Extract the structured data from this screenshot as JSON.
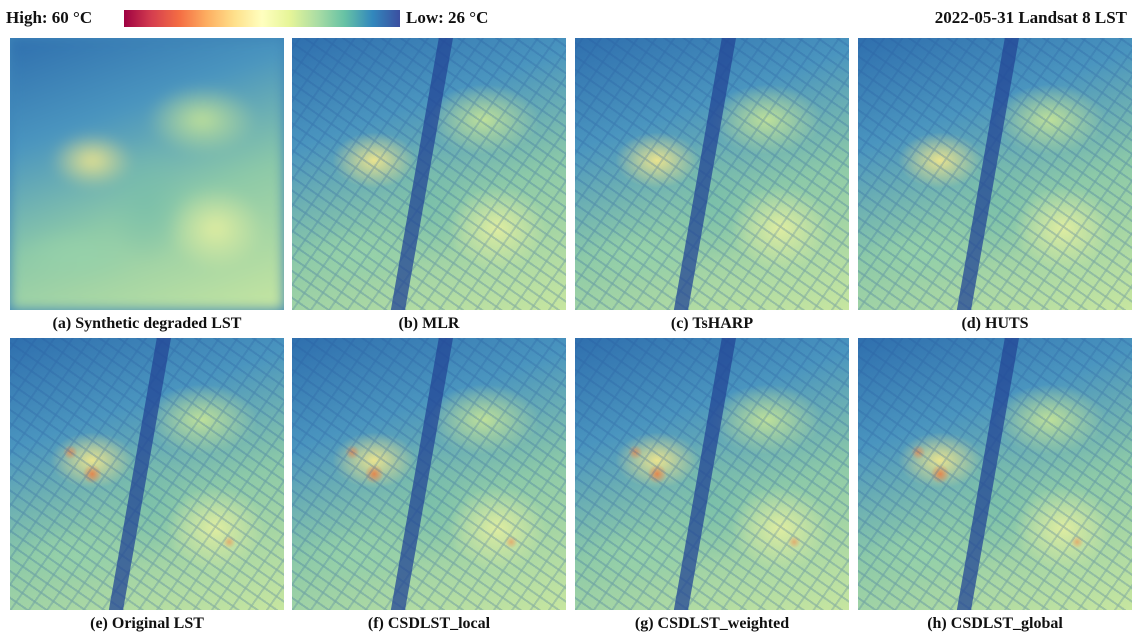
{
  "header": {
    "high_label": "High: 60 °C",
    "low_label": "Low: 26 °C",
    "title": "2022-05-31 Landsat 8 LST"
  },
  "panels": [
    {
      "caption": "(a) Synthetic degraded LST"
    },
    {
      "caption": "(b) MLR"
    },
    {
      "caption": "(c) TsHARP"
    },
    {
      "caption": "(d) HUTS"
    },
    {
      "caption": "(e) Original LST"
    },
    {
      "caption": "(f) CSDLST_local"
    },
    {
      "caption": "(g) CSDLST_weighted"
    },
    {
      "caption": "(h) CSDLST_global"
    }
  ]
}
